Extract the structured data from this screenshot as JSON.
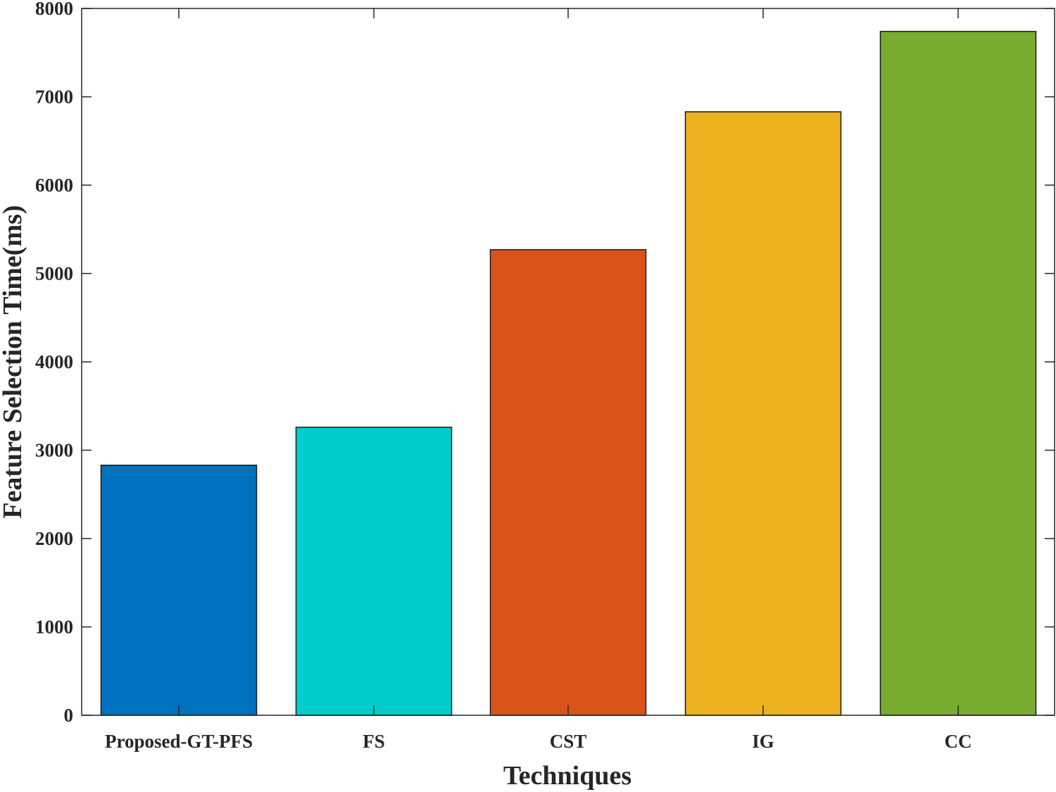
{
  "chart_data": {
    "type": "bar",
    "title": "",
    "xlabel": "Techniques",
    "ylabel": "Feature Selection Time(ms)",
    "categories": [
      "Proposed-GT-PFS",
      "FS",
      "CST",
      "IG",
      "CC"
    ],
    "values": [
      2830,
      3260,
      5270,
      6830,
      7740
    ],
    "colors": [
      "#0072BD",
      "#00CCCC",
      "#D95319",
      "#EDB120",
      "#77AC30"
    ],
    "ylim": [
      0,
      8000
    ],
    "yticks": [
      0,
      1000,
      2000,
      3000,
      4000,
      5000,
      6000,
      7000,
      8000
    ],
    "grid": false,
    "legend": null
  }
}
